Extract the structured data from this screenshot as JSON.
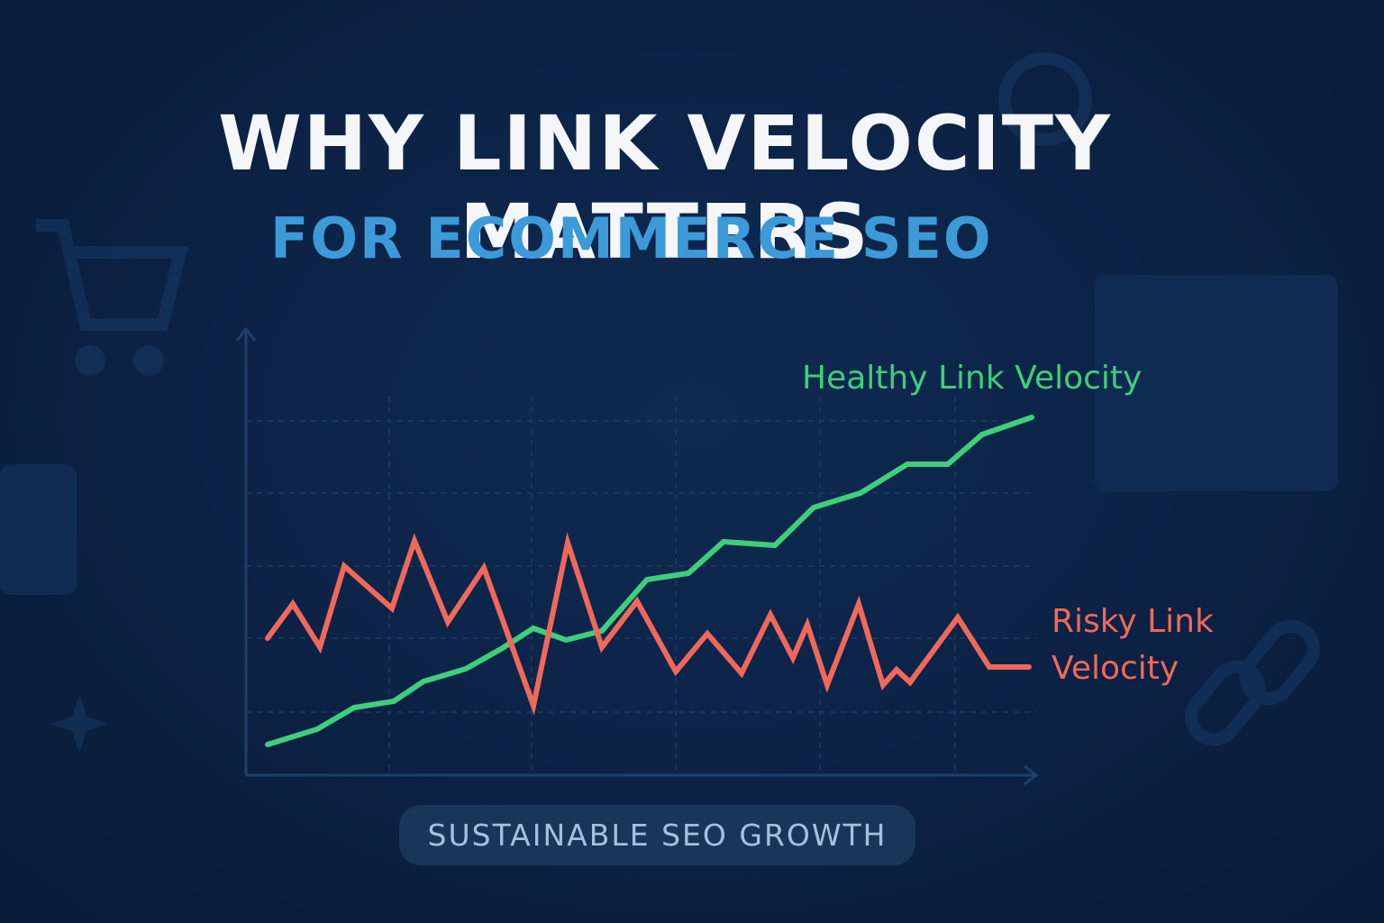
{
  "chart_data": {
    "type": "line",
    "title": "WHY LINK VELOCITY MATTERS",
    "subtitle": "FOR ECOMMERCE SEO",
    "badge": "SUSTAINABLE SEO GROWTH",
    "xlim": [
      0,
      877
    ],
    "ylim": [
      0,
      99
    ],
    "series": [
      {
        "name": "Healthy Link Velocity",
        "color": "#3ecf7a",
        "x": [
          24,
          79,
          120,
          164,
          197,
          244,
          283,
          319,
          355,
          395,
          445,
          491,
          530,
          587,
          630,
          682,
          734,
          779,
          817,
          872
        ],
        "values": [
          6.8,
          10.2,
          15,
          16.4,
          20.8,
          23.6,
          28,
          32.6,
          30,
          32,
          43.4,
          44.8,
          51.8,
          51,
          59.4,
          62.6,
          69,
          69,
          75.6,
          79.4
        ]
      },
      {
        "name": "Risky Link Velocity",
        "color": "#f0685a",
        "x": [
          24,
          52,
          82,
          109,
          162,
          187,
          224,
          264,
          319,
          357,
          395,
          434,
          477,
          512,
          550,
          582,
          607,
          623,
          645,
          680,
          707,
          722,
          737,
          790,
          825,
          869
        ],
        "values": [
          30.4,
          38,
          28.4,
          46.4,
          37,
          52,
          34,
          46,
          15.4,
          51.6,
          28.4,
          38.6,
          23,
          31.4,
          22.6,
          35.6,
          26,
          33.4,
          20,
          38,
          20,
          23.4,
          20.6,
          35,
          24,
          24
        ]
      }
    ]
  }
}
